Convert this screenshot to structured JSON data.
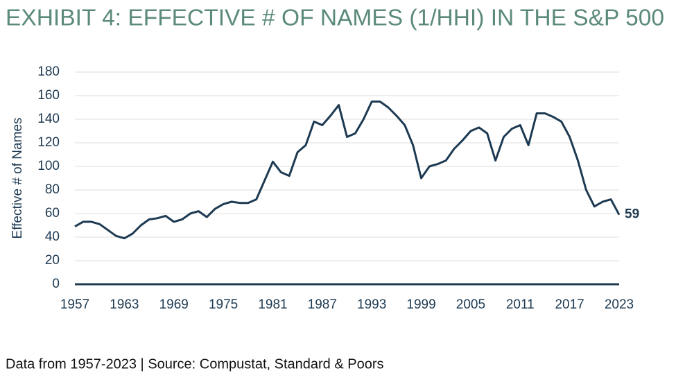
{
  "chart_data": {
    "type": "line",
    "title": "EXHIBIT 4: EFFECTIVE # OF NAMES (1/HHI) IN THE S&P 500",
    "ylabel": "Effective # of Names",
    "note": "Data from 1957-2023 | Source: Compustat, Standard & Poors",
    "x": [
      1957,
      1958,
      1959,
      1960,
      1961,
      1962,
      1963,
      1964,
      1965,
      1966,
      1967,
      1968,
      1969,
      1970,
      1971,
      1972,
      1973,
      1974,
      1975,
      1976,
      1977,
      1978,
      1979,
      1980,
      1981,
      1982,
      1983,
      1984,
      1985,
      1986,
      1987,
      1988,
      1989,
      1990,
      1991,
      1992,
      1993,
      1994,
      1995,
      1996,
      1997,
      1998,
      1999,
      2000,
      2001,
      2002,
      2003,
      2004,
      2005,
      2006,
      2007,
      2008,
      2009,
      2010,
      2011,
      2012,
      2013,
      2014,
      2015,
      2016,
      2017,
      2018,
      2019,
      2020,
      2021,
      2022,
      2023
    ],
    "values": [
      49,
      53,
      53,
      51,
      46,
      41,
      39,
      43,
      50,
      55,
      56,
      58,
      53,
      55,
      60,
      62,
      57,
      64,
      68,
      70,
      69,
      69,
      72,
      88,
      104,
      95,
      92,
      112,
      118,
      138,
      135,
      143,
      152,
      125,
      128,
      140,
      155,
      155,
      150,
      143,
      135,
      118,
      90,
      100,
      102,
      105,
      115,
      122,
      130,
      133,
      128,
      105,
      125,
      132,
      135,
      118,
      145,
      145,
      142,
      138,
      125,
      105,
      80,
      66,
      70,
      72,
      59
    ],
    "color": "#1d3a52",
    "xlim": [
      1957,
      2023
    ],
    "xticks": [
      1957,
      1963,
      1969,
      1975,
      1981,
      1987,
      1993,
      1999,
      2005,
      2011,
      2017,
      2023
    ],
    "ylim": [
      0,
      180
    ],
    "yticks": [
      0,
      20,
      40,
      60,
      80,
      100,
      120,
      140,
      160,
      180
    ],
    "grid": true
  }
}
